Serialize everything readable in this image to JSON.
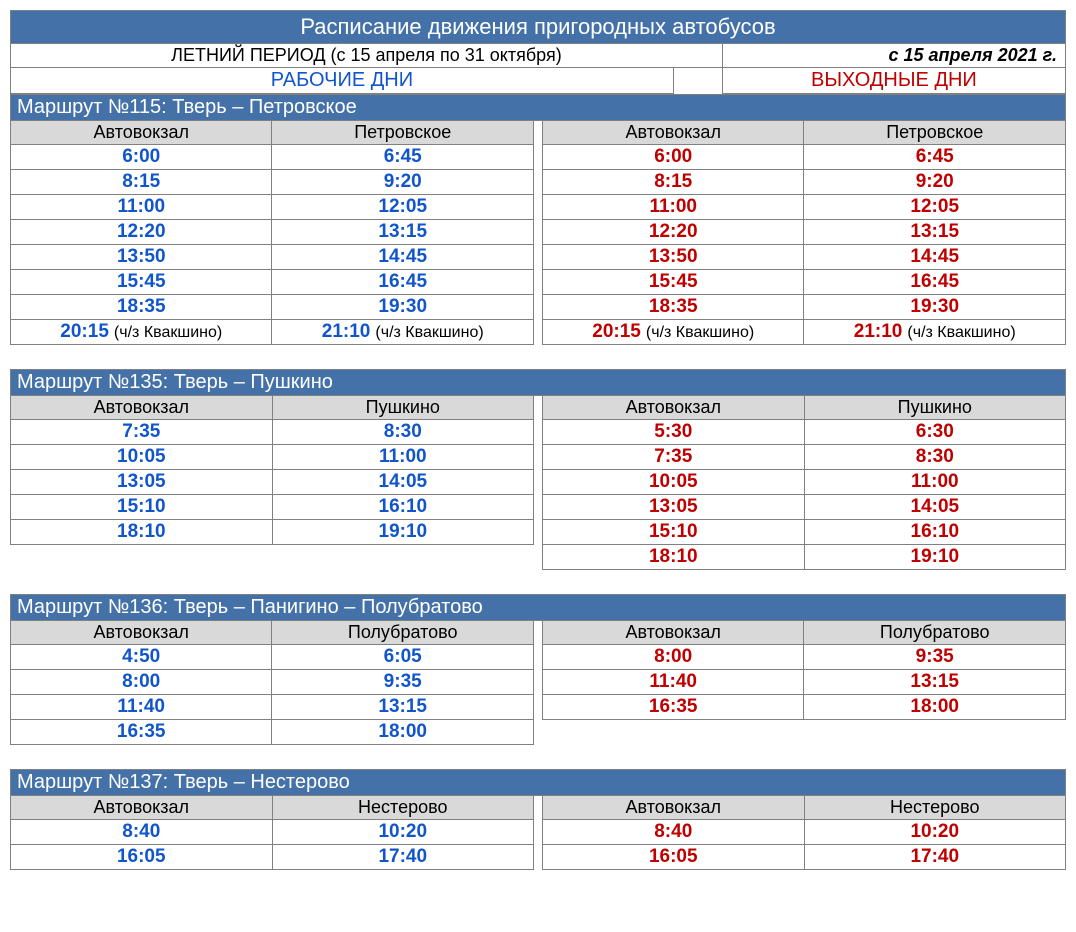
{
  "colors": {
    "header_bg": "#4472a8",
    "header_fg": "#ffffff",
    "col_header_bg": "#d9d9d9",
    "work_color": "#1155cc",
    "week_color": "#c00000",
    "border": "#808080"
  },
  "title": "Расписание движения пригородных автобусов",
  "period": "ЛЕТНИЙ ПЕРИОД (с 15 апреля по 31 октября)",
  "effective": "с 15 апреля 2021 г.",
  "day_work": "РАБОЧИЕ ДНИ",
  "day_week": "ВЫХОДНЫЕ ДНИ",
  "routes": [
    {
      "name": "Маршрут №115: Тверь – Петровское",
      "stop_a": "Автовокзал",
      "stop_b": "Петровское",
      "work": [
        {
          "a": "6:00",
          "b": "6:45"
        },
        {
          "a": "8:15",
          "b": "9:20"
        },
        {
          "a": "11:00",
          "b": "12:05"
        },
        {
          "a": "12:20",
          "b": "13:15"
        },
        {
          "a": "13:50",
          "b": "14:45"
        },
        {
          "a": "15:45",
          "b": "16:45"
        },
        {
          "a": "18:35",
          "b": "19:30"
        },
        {
          "a": "20:15",
          "a_note": "(ч/з Квакшино)",
          "b": "21:10",
          "b_note": "(ч/з Квакшино)"
        }
      ],
      "week": [
        {
          "a": "6:00",
          "b": "6:45"
        },
        {
          "a": "8:15",
          "b": "9:20"
        },
        {
          "a": "11:00",
          "b": "12:05"
        },
        {
          "a": "12:20",
          "b": "13:15"
        },
        {
          "a": "13:50",
          "b": "14:45"
        },
        {
          "a": "15:45",
          "b": "16:45"
        },
        {
          "a": "18:35",
          "b": "19:30"
        },
        {
          "a": "20:15",
          "a_note": "(ч/з Квакшино)",
          "b": "21:10",
          "b_note": "(ч/з Квакшино)"
        }
      ]
    },
    {
      "name": "Маршрут №135: Тверь – Пушкино",
      "stop_a": "Автовокзал",
      "stop_b": "Пушкино",
      "work": [
        {
          "a": "7:35",
          "b": "8:30"
        },
        {
          "a": "10:05",
          "b": "11:00"
        },
        {
          "a": "13:05",
          "b": "14:05"
        },
        {
          "a": "15:10",
          "b": "16:10"
        },
        {
          "a": "18:10",
          "b": "19:10"
        }
      ],
      "week": [
        {
          "a": "5:30",
          "b": "6:30"
        },
        {
          "a": "7:35",
          "b": "8:30"
        },
        {
          "a": "10:05",
          "b": "11:00"
        },
        {
          "a": "13:05",
          "b": "14:05"
        },
        {
          "a": "15:10",
          "b": "16:10"
        },
        {
          "a": "18:10",
          "b": "19:10"
        }
      ]
    },
    {
      "name": "Маршрут №136: Тверь – Панигино – Полубратово",
      "stop_a": "Автовокзал",
      "stop_b": "Полубратово",
      "work": [
        {
          "a": "4:50",
          "b": "6:05"
        },
        {
          "a": "8:00",
          "b": "9:35"
        },
        {
          "a": "11:40",
          "b": "13:15"
        },
        {
          "a": "16:35",
          "b": "18:00"
        }
      ],
      "week": [
        {
          "a": "8:00",
          "b": "9:35"
        },
        {
          "a": "11:40",
          "b": "13:15"
        },
        {
          "a": "16:35",
          "b": "18:00"
        }
      ]
    },
    {
      "name": "Маршрут №137: Тверь – Нестерово",
      "stop_a": "Автовокзал",
      "stop_b": "Нестерово",
      "work": [
        {
          "a": "8:40",
          "b": "10:20"
        },
        {
          "a": "16:05",
          "b": "17:40"
        }
      ],
      "week": [
        {
          "a": "8:40",
          "b": "10:20"
        },
        {
          "a": "16:05",
          "b": "17:40"
        }
      ]
    }
  ]
}
